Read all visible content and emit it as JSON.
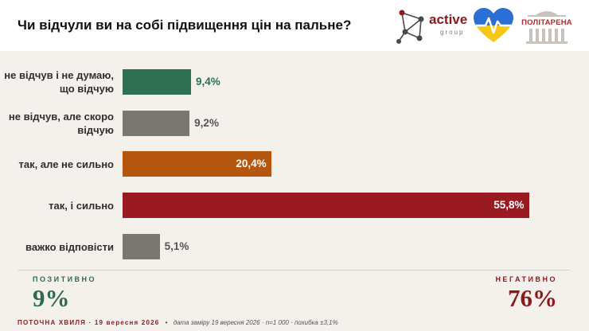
{
  "title": "Чи відчули ви на собі підвищення цін на пальне?",
  "logos": {
    "active_brand": "active",
    "active_sub": "group",
    "politarena": "ПОЛІТАРЕНА"
  },
  "chart_data": {
    "type": "bar",
    "orientation": "horizontal",
    "categories": [
      "не відчув і не думаю, що відчую",
      "не відчув, але скоро відчую",
      "так, але не сильно",
      "так, і сильно",
      "важко відповісти"
    ],
    "values": [
      9.4,
      9.2,
      20.4,
      55.8,
      5.1
    ],
    "value_labels": [
      "9,4%",
      "9,2%",
      "20,4%",
      "55,8%",
      "5,1%"
    ],
    "colors": [
      "#2f7052",
      "#7a7773",
      "#b4560e",
      "#9a1a22",
      "#7a7773"
    ],
    "xlim": [
      0,
      100
    ],
    "title": "Чи відчули ви на собі підвищення цін на пальне?"
  },
  "kpis": {
    "positive_label": "ПОЗИТИВНО",
    "positive_value": "9%",
    "negative_label": "НЕГАТИВНО",
    "negative_value": "76%"
  },
  "colors": {
    "positive": "#2f6b4f",
    "negative": "#8a1a1e"
  },
  "footer": {
    "wave": "ПОТОЧНА ХВИЛЯ · 19 вересня 2026",
    "separator": "•",
    "meta": "дата заміру 19 вересня 2026 · n=1 000 · похибка ±3,1%"
  }
}
